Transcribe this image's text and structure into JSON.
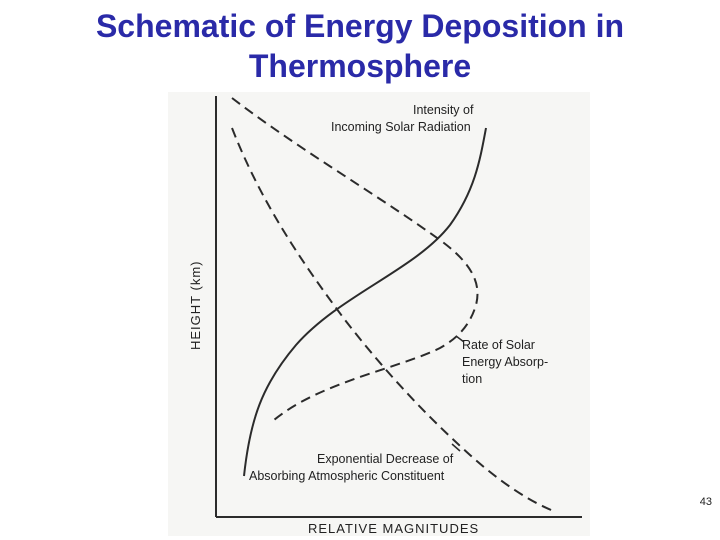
{
  "slide": {
    "title_line1": "Schematic of Energy Deposition in",
    "title_line2": "Thermosphere",
    "page_number": "43",
    "title_color": "#2a2aa8"
  },
  "figure": {
    "y_axis_label": "HEIGHT (km)",
    "x_axis_label": "RELATIVE MAGNITUDES",
    "curves": [
      {
        "id": "intensity",
        "style": "solid",
        "label_lines": [
          "Intensity of",
          "Incoming Solar Radiation"
        ]
      },
      {
        "id": "absorption",
        "style": "dashed",
        "label_lines": [
          "Rate of Solar",
          "Energy Absorp-",
          "tion"
        ]
      },
      {
        "id": "constituent",
        "style": "dashed",
        "label_lines": [
          "Exponential Decrease of",
          "Absorbing Atmospheric Constituent"
        ]
      }
    ]
  }
}
